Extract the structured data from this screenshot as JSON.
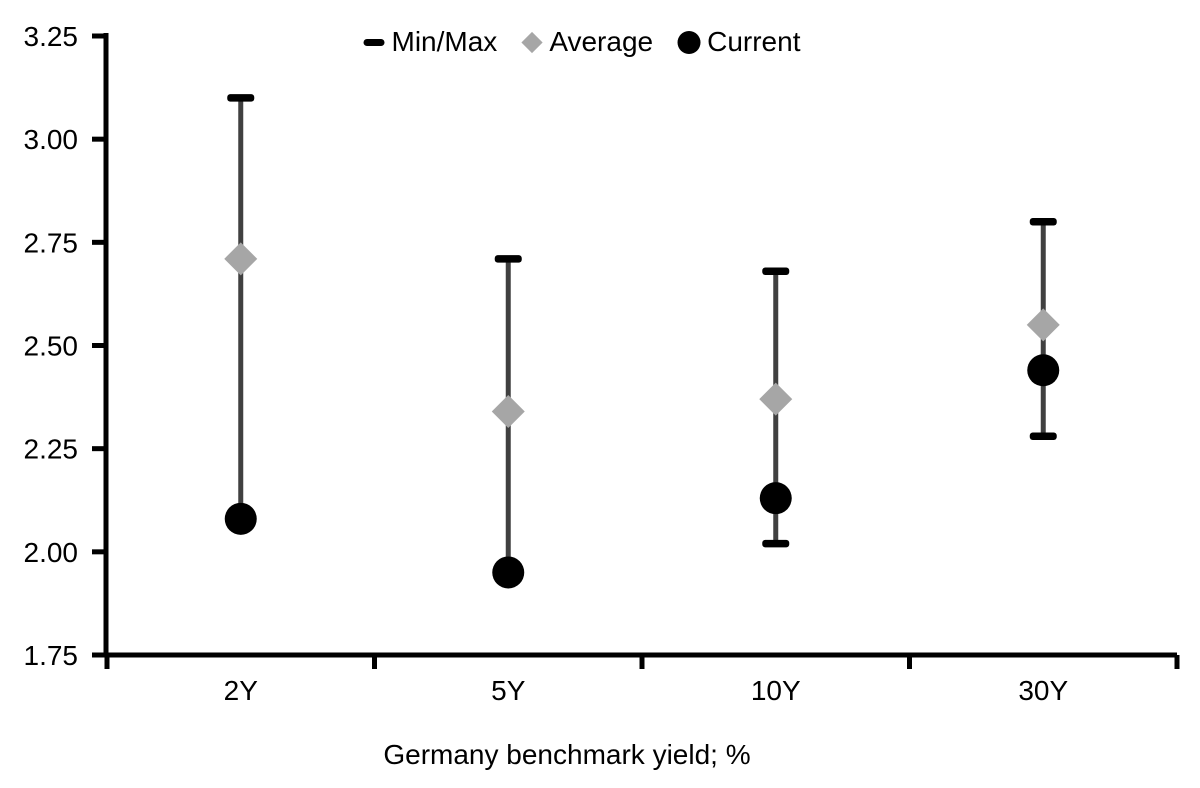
{
  "colors": {
    "background": "#ffffff",
    "text": "#000000",
    "axis": "#000000",
    "minmax_black": "#000000",
    "average_gray": "#a6a6a6",
    "current_black": "#000000",
    "stem_gray": "#404040"
  },
  "legend": {
    "items": [
      {
        "label": "Min/Max",
        "marker": "dash",
        "color": "#000000"
      },
      {
        "label": "Average",
        "marker": "diamond",
        "color": "#a6a6a6"
      },
      {
        "label": "Current",
        "marker": "circle",
        "color": "#000000"
      }
    ]
  },
  "chart_data": {
    "type": "scatter",
    "subtype": "min-max-range-with-markers",
    "categories": [
      "2Y",
      "5Y",
      "10Y",
      "30Y"
    ],
    "series": [
      {
        "name": "Min/Max",
        "role": "range",
        "max": [
          3.1,
          2.71,
          2.68,
          2.8
        ],
        "min": [
          2.08,
          1.95,
          2.02,
          2.28
        ]
      },
      {
        "name": "Average",
        "role": "point",
        "marker": "diamond",
        "values": [
          2.71,
          2.34,
          2.37,
          2.55
        ]
      },
      {
        "name": "Current",
        "role": "point",
        "marker": "circle",
        "values": [
          2.08,
          1.95,
          2.13,
          2.44
        ]
      }
    ],
    "title": "",
    "xlabel": "Germany benchmark yield; %",
    "ylabel": "",
    "ylim": [
      1.75,
      3.25
    ],
    "ytick_step": 0.25,
    "ytick_labels": [
      "1.75",
      "2.00",
      "2.25",
      "2.50",
      "2.75",
      "3.00",
      "3.25"
    ],
    "grid": false,
    "legend_position": "top-center"
  }
}
